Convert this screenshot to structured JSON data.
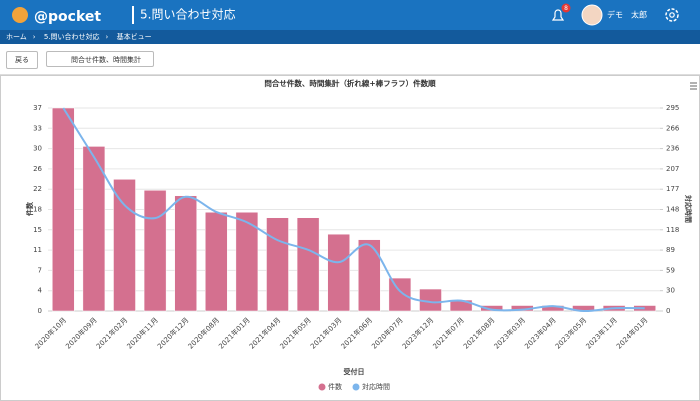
{
  "header": {
    "logo": "@pocket",
    "page_title": "5.問い合わせ対応",
    "notification_count": "8",
    "user": "デモ　太郎"
  },
  "breadcrumb": [
    "ホーム",
    "5.問い合わせ対応",
    "基本ビュー"
  ],
  "toolbar": {
    "back": "戻る",
    "view": "問合せ件数、時間集計"
  },
  "chart_data": {
    "type": "bar-line",
    "title": "問合せ件数、時間集計（折れ線+棒フラフ）件数順",
    "xlabel": "受付日",
    "ylabel": "件数",
    "y2label": "対応時間",
    "categories": [
      "2020年10月",
      "2020年09月",
      "2021年02月",
      "2020年11月",
      "2020年12月",
      "2020年08月",
      "2021年01月",
      "2021年04月",
      "2021年05月",
      "2021年03月",
      "2021年06月",
      "2020年07月",
      "2023年12月",
      "2021年07月",
      "2021年08月",
      "2023年03月",
      "2023年04月",
      "2023年05月",
      "2023年11月",
      "2024年01月"
    ],
    "series": [
      {
        "name": "件数",
        "color": "#d4708f",
        "type": "bar",
        "values": [
          37,
          30,
          24,
          22,
          21,
          18,
          18,
          17,
          17,
          14,
          13,
          6,
          4,
          2,
          1,
          1,
          1,
          1,
          1,
          1
        ]
      },
      {
        "name": "対応時間",
        "color": "#7cb5ec",
        "type": "line",
        "axis": "y2",
        "values": [
          295,
          224,
          154,
          135,
          166,
          144,
          129,
          103,
          89,
          71,
          96,
          29,
          13,
          15,
          2,
          2,
          7,
          0,
          4,
          4
        ]
      }
    ],
    "ylim": [
      0,
      37
    ],
    "yticks": [
      0,
      {
        "value": 3.7,
        "label": "4"
      },
      {
        "value": 7.4,
        "label": "7"
      },
      {
        "value": 11.1,
        "label": "11"
      },
      {
        "value": 14.8,
        "label": "15"
      },
      {
        "value": 18.5,
        "label": "18"
      },
      {
        "value": 22.2,
        "label": "22"
      },
      {
        "value": 25.9,
        "label": "26"
      },
      {
        "value": 29.6,
        "label": "30"
      },
      {
        "value": 33.3,
        "label": "33"
      },
      37
    ],
    "y2lim": [
      0,
      295
    ],
    "y2ticks": [
      0,
      {
        "value": 29.5,
        "label": "30"
      },
      59,
      {
        "value": 88.5,
        "label": "89"
      },
      118,
      {
        "value": 147.5,
        "label": "148"
      },
      177,
      {
        "value": 206.5,
        "label": "207"
      },
      236,
      {
        "value": 265.5,
        "label": "266"
      },
      295
    ],
    "grid": true,
    "legend": "bottom"
  }
}
